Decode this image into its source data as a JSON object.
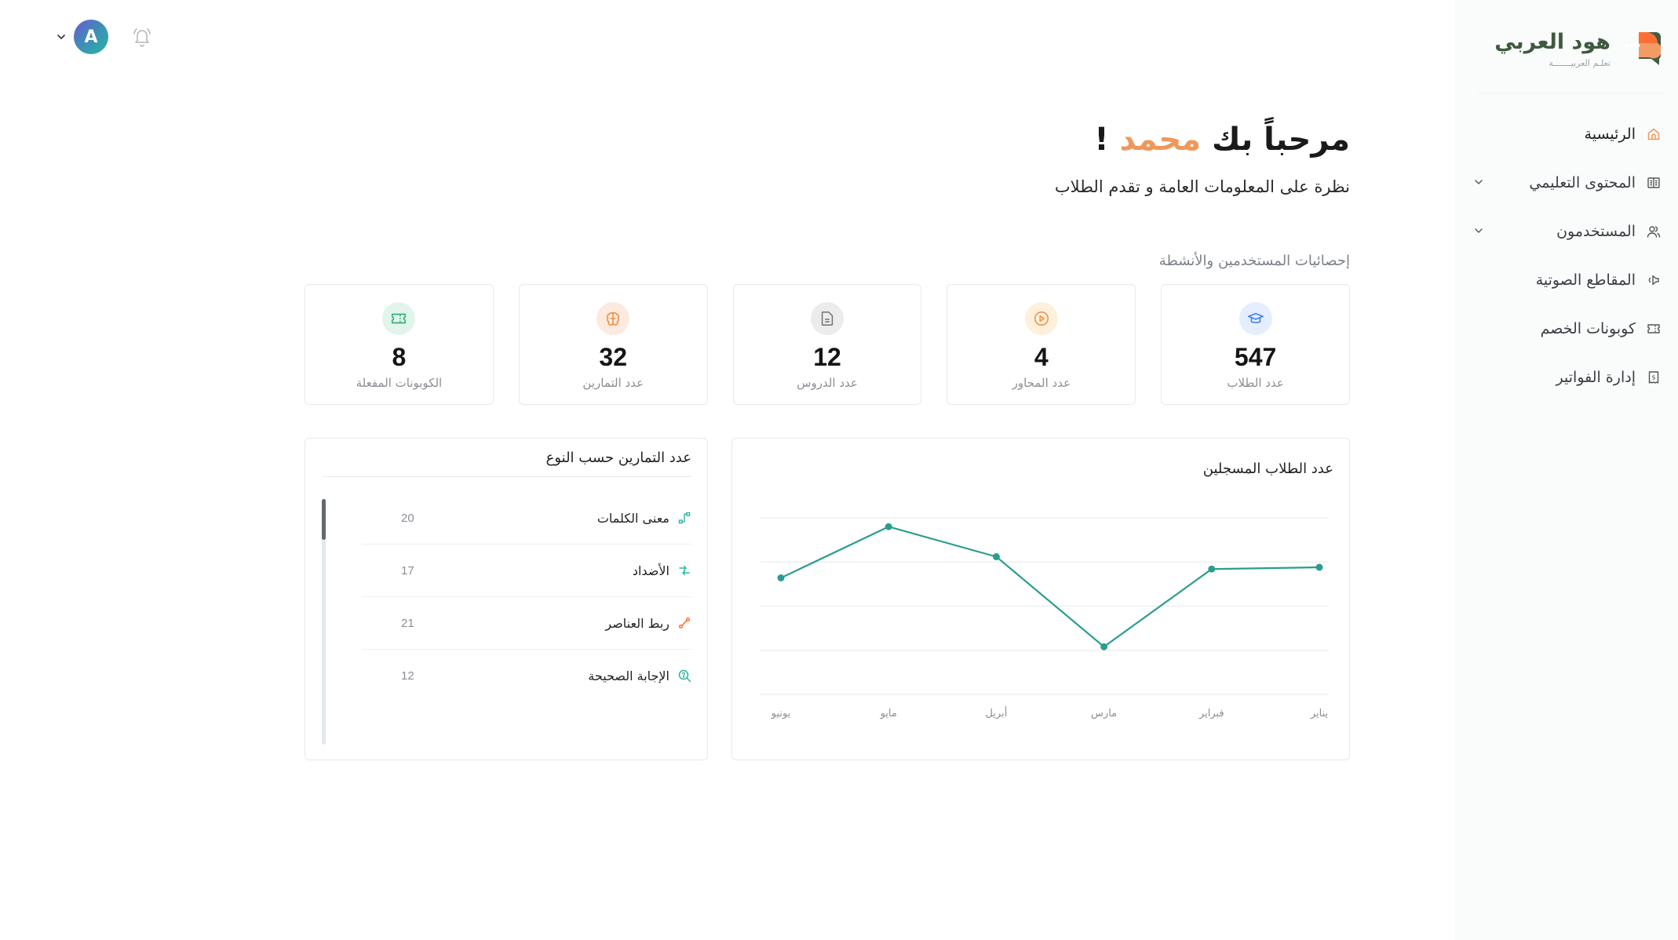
{
  "brand": {
    "title": "هود العربي",
    "subtitle": "تعلـم العربيـــــــة",
    "colors": {
      "green": "#425c41",
      "orange": "#ff6f31",
      "light_orange": "#f39b66"
    }
  },
  "sidebar": {
    "items": [
      {
        "label": "الرئيسية",
        "icon": "home-icon",
        "active": true,
        "expandable": false
      },
      {
        "label": "المحتوى التعليمي",
        "icon": "book-icon",
        "active": false,
        "expandable": true
      },
      {
        "label": "المستخدمون",
        "icon": "users-icon",
        "active": false,
        "expandable": true
      },
      {
        "label": "المقاطع الصوتية",
        "icon": "speaker-icon",
        "active": false,
        "expandable": false
      },
      {
        "label": "كوبونات الخصم",
        "icon": "ticket-icon",
        "active": false,
        "expandable": false
      },
      {
        "label": "إدارة الفواتير",
        "icon": "receipt-icon",
        "active": false,
        "expandable": false
      }
    ]
  },
  "topbar": {
    "avatar_initial": "A",
    "notification_icon": "bell-icon",
    "menu_icon": "chevron-down-icon"
  },
  "header": {
    "greeting_prefix": "مرحباً بك",
    "user_name": "محمد",
    "greeting_suffix": "!",
    "subtitle": "نظرة على المعلومات العامة و تقدم الطلاب",
    "section_label": "إحصائيات المستخدمين والأنشطة"
  },
  "stats": [
    {
      "value": "547",
      "label": "عدد الطلاب",
      "icon": "graduation-cap-icon",
      "color": "#3b82f6",
      "bg": "#e5eeff"
    },
    {
      "value": "4",
      "label": "عدد المحاور",
      "icon": "play-circle-icon",
      "color": "#f08a3c",
      "bg": "#fff0dc"
    },
    {
      "value": "12",
      "label": "عدد الدروس",
      "icon": "document-icon",
      "color": "#6b7075",
      "bg": "#ececec"
    },
    {
      "value": "32",
      "label": "عدد التمارين",
      "icon": "brain-icon",
      "color": "#f08a3c",
      "bg": "#fdeadf"
    },
    {
      "value": "8",
      "label": "الكوبونات المفعلة",
      "icon": "ticket-icon",
      "color": "#34b27b",
      "bg": "#e2f5ec"
    }
  ],
  "registered_students": {
    "title": "عدد الطلاب المسجلين",
    "line_color": "#2a9d8f"
  },
  "chart_data": {
    "type": "line",
    "title": "عدد الطلاب المسجلين",
    "categories": [
      "يناير",
      "فبراير",
      "مارس",
      "أبريل",
      "مايو",
      "يونيو"
    ],
    "series": [
      {
        "name": "عدد الطلاب المسجلين",
        "values": [
          72,
          71,
          27,
          78,
          95,
          66
        ]
      }
    ],
    "xlabel": "",
    "ylabel": "",
    "ylim": [
      0,
      100
    ],
    "grid": true,
    "x_axis_direction": "rtl",
    "legend": "none"
  },
  "exercises": {
    "title": "عدد التمارين حسب النوع",
    "items": [
      {
        "label": "معنى الكلمات",
        "count": "20",
        "icon": "route-icon",
        "color": "#2bb5a0"
      },
      {
        "label": "الأضداد",
        "count": "17",
        "icon": "arrows-exchange-icon",
        "color": "#2bb5a0"
      },
      {
        "label": "ربط العناصر",
        "count": "21",
        "icon": "link-connect-icon",
        "color": "#ff6f31"
      },
      {
        "label": "الإجابة الصحيحة",
        "count": "12",
        "icon": "search-question-icon",
        "color": "#2bb5a0"
      }
    ]
  }
}
